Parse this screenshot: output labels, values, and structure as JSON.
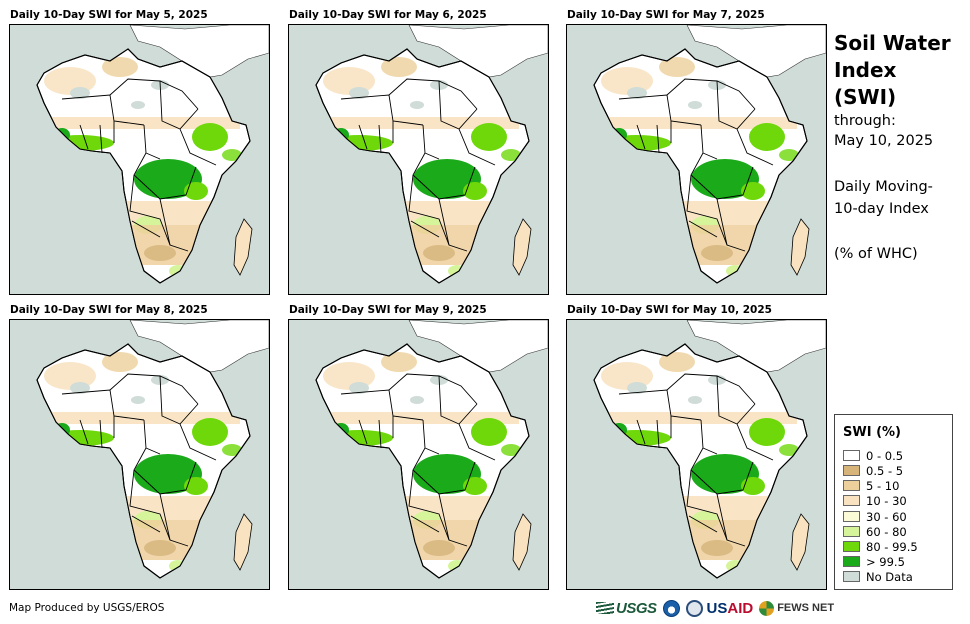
{
  "panels": [
    {
      "title": "Daily 10-Day SWI for May 5, 2025"
    },
    {
      "title": "Daily 10-Day SWI for May 6, 2025"
    },
    {
      "title": "Daily 10-Day SWI for May 7, 2025"
    },
    {
      "title": "Daily 10-Day SWI for May 8, 2025"
    },
    {
      "title": "Daily 10-Day SWI for May 9, 2025"
    },
    {
      "title": "Daily 10-Day SWI for May 10, 2025"
    }
  ],
  "side": {
    "title": "Soil Water Index (SWI)",
    "through_label": "through:",
    "through_date": "May 10, 2025",
    "description": "Daily Moving-10-day Index",
    "units": "(% of WHC)"
  },
  "legend": {
    "title": "SWI (%)",
    "items": [
      {
        "label": "0 - 0.5",
        "color": "#ffffff"
      },
      {
        "label": "0.5 - 5",
        "color": "#d6b47a"
      },
      {
        "label": "5 - 10",
        "color": "#edcf9b"
      },
      {
        "label": "10 - 30",
        "color": "#f8e2c0"
      },
      {
        "label": "30 - 60",
        "color": "#fbfbd8"
      },
      {
        "label": "60 - 80",
        "color": "#d6f59b"
      },
      {
        "label": "80 - 99.5",
        "color": "#6fd80b"
      },
      {
        "label": "> 99.5",
        "color": "#1aaa1a"
      },
      {
        "label": "No Data",
        "color": "#cfdcd8"
      }
    ]
  },
  "footer": {
    "credit": "Map Produced by USGS/EROS",
    "logos": {
      "usgs": "USGS",
      "usaid_a": "US",
      "usaid_b": "AID",
      "fews": "FEWS NET"
    }
  }
}
